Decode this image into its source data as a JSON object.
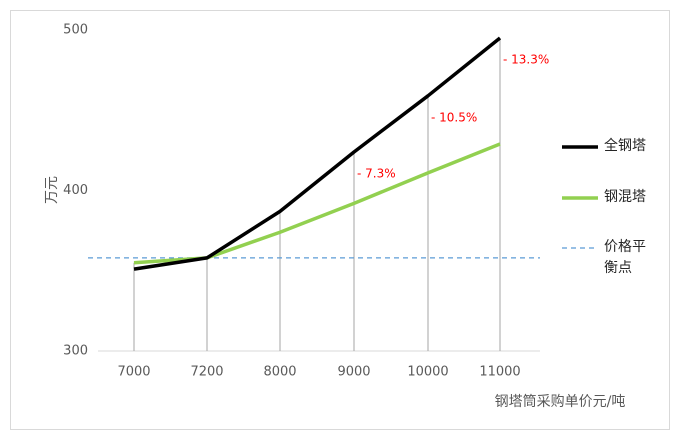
{
  "chart_data": {
    "type": "line",
    "y_label": "万元",
    "x_label": "钢塔筒采购单价元/吨",
    "categories": [
      "7000",
      "7200",
      "8000",
      "9000",
      "10000",
      "11000"
    ],
    "series": [
      {
        "name": "全钢塔",
        "color": "#000000",
        "values": [
          351,
          358,
          387,
          424,
          459,
          495
        ]
      },
      {
        "name": "钢混塔",
        "color": "#92d050",
        "values": [
          355,
          358,
          374,
          392,
          411,
          429
        ]
      }
    ],
    "reference_line": {
      "name": "价格平衡点",
      "value": 358,
      "color": "#5b9bd5"
    },
    "annotations": [
      null,
      null,
      null,
      "- 7.3%",
      "- 10.5%",
      "- 13.3%"
    ],
    "annotation_color": "#ff0000",
    "ylim": [
      300,
      500
    ],
    "yticks": [
      300,
      400,
      500
    ]
  }
}
